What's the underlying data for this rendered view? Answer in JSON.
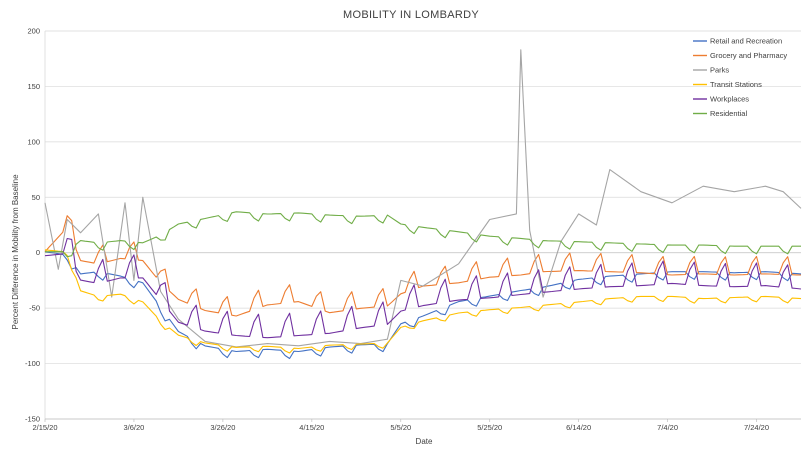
{
  "chart_data": {
    "type": "line",
    "title": "MOBILITY IN LOMBARDY",
    "xlabel": "Date",
    "ylabel": "Percent Difference in Mobility from Baseline",
    "ylim": [
      -150,
      200
    ],
    "yticks": [
      -150,
      -100,
      -50,
      0,
      50,
      100,
      150,
      200
    ],
    "x_start": "2020-02-15",
    "x_end": "2020-08-03",
    "xtick_labels": [
      "2/15/20",
      "3/6/20",
      "3/26/20",
      "4/15/20",
      "5/5/20",
      "5/25/20",
      "6/14/20",
      "7/4/20",
      "7/24/20"
    ],
    "xtick_dates": [
      "2020-02-15",
      "2020-03-06",
      "2020-03-26",
      "2020-04-15",
      "2020-05-05",
      "2020-05-25",
      "2020-06-14",
      "2020-07-04",
      "2020-07-24"
    ],
    "grid": "horizontal",
    "legend_position": "top-right",
    "series": [
      {
        "name": "Retail and Recreation",
        "color": "#4472c4",
        "x": [
          "2020-02-15",
          "2020-02-20",
          "2020-02-23",
          "2020-02-27",
          "2020-03-03",
          "2020-03-08",
          "2020-03-12",
          "2020-03-16",
          "2020-03-22",
          "2020-03-29",
          "2020-04-05",
          "2020-04-12",
          "2020-04-19",
          "2020-04-26",
          "2020-05-02",
          "2020-05-05",
          "2020-05-10",
          "2020-05-18",
          "2020-05-25",
          "2020-06-01",
          "2020-06-06",
          "2020-06-14",
          "2020-06-21",
          "2020-06-28",
          "2020-07-05",
          "2020-07-12",
          "2020-07-19",
          "2020-07-26",
          "2020-08-03"
        ],
        "y": [
          0,
          -3,
          -20,
          -18,
          -22,
          -28,
          -50,
          -72,
          -85,
          -90,
          -88,
          -90,
          -86,
          -84,
          -83,
          -65,
          -58,
          -45,
          -40,
          -35,
          -32,
          -25,
          -22,
          -20,
          -18,
          -18,
          -19,
          -18,
          -20
        ]
      },
      {
        "name": "Grocery and Pharmacy",
        "color": "#ed7d31",
        "x": [
          "2020-02-15",
          "2020-02-20",
          "2020-02-23",
          "2020-02-27",
          "2020-03-03",
          "2020-03-08",
          "2020-03-12",
          "2020-03-16",
          "2020-03-22",
          "2020-03-29",
          "2020-04-05",
          "2020-04-12",
          "2020-04-19",
          "2020-04-26",
          "2020-05-02",
          "2020-05-05",
          "2020-05-10",
          "2020-05-18",
          "2020-05-25",
          "2020-06-01",
          "2020-06-06",
          "2020-06-14",
          "2020-06-21",
          "2020-06-28",
          "2020-07-05",
          "2020-07-12",
          "2020-07-19",
          "2020-07-26",
          "2020-08-03"
        ],
        "y": [
          3,
          25,
          -5,
          -8,
          -3,
          -5,
          -25,
          -40,
          -50,
          -55,
          -45,
          -42,
          -52,
          -48,
          -46,
          -35,
          -28,
          -25,
          -20,
          -18,
          -15,
          -14,
          -15,
          -16,
          -18,
          -17,
          -18,
          -17,
          -18
        ]
      },
      {
        "name": "Parks",
        "color": "#a5a5a5",
        "x": [
          "2020-02-15",
          "2020-02-18",
          "2020-02-20",
          "2020-02-23",
          "2020-02-27",
          "2020-03-01",
          "2020-03-04",
          "2020-03-06",
          "2020-03-08",
          "2020-03-12",
          "2020-03-16",
          "2020-03-22",
          "2020-03-29",
          "2020-04-05",
          "2020-04-12",
          "2020-04-19",
          "2020-04-26",
          "2020-05-02",
          "2020-05-05",
          "2020-05-10",
          "2020-05-18",
          "2020-05-25",
          "2020-05-31",
          "2020-06-01",
          "2020-06-03",
          "2020-06-06",
          "2020-06-10",
          "2020-06-14",
          "2020-06-18",
          "2020-06-21",
          "2020-06-28",
          "2020-07-05",
          "2020-07-12",
          "2020-07-19",
          "2020-07-26",
          "2020-07-30",
          "2020-08-03"
        ],
        "y": [
          45,
          -15,
          30,
          18,
          35,
          -40,
          45,
          -25,
          50,
          -35,
          -60,
          -80,
          -85,
          -82,
          -84,
          -80,
          -82,
          -78,
          -25,
          -30,
          -10,
          30,
          35,
          183,
          20,
          -40,
          10,
          35,
          25,
          75,
          55,
          45,
          60,
          55,
          60,
          55,
          40
        ]
      },
      {
        "name": "Transit Stations",
        "color": "#ffc000",
        "x": [
          "2020-02-15",
          "2020-02-20",
          "2020-02-23",
          "2020-02-27",
          "2020-03-03",
          "2020-03-08",
          "2020-03-12",
          "2020-03-16",
          "2020-03-22",
          "2020-03-29",
          "2020-04-05",
          "2020-04-12",
          "2020-04-19",
          "2020-04-26",
          "2020-05-02",
          "2020-05-05",
          "2020-05-10",
          "2020-05-18",
          "2020-05-25",
          "2020-06-01",
          "2020-06-06",
          "2020-06-14",
          "2020-06-21",
          "2020-06-28",
          "2020-07-05",
          "2020-07-12",
          "2020-07-19",
          "2020-07-26",
          "2020-08-03"
        ],
        "y": [
          2,
          0,
          -35,
          -40,
          -38,
          -45,
          -62,
          -75,
          -82,
          -86,
          -85,
          -87,
          -84,
          -83,
          -82,
          -68,
          -62,
          -55,
          -52,
          -50,
          -48,
          -45,
          -42,
          -40,
          -40,
          -42,
          -41,
          -40,
          -42
        ]
      },
      {
        "name": "Workplaces",
        "color": "#7030a0",
        "x": [
          "2020-02-15",
          "2020-02-20",
          "2020-02-23",
          "2020-02-27",
          "2020-03-03",
          "2020-03-08",
          "2020-03-12",
          "2020-03-16",
          "2020-03-22",
          "2020-03-29",
          "2020-04-05",
          "2020-04-12",
          "2020-04-19",
          "2020-04-26",
          "2020-05-02",
          "2020-05-05",
          "2020-05-10",
          "2020-05-18",
          "2020-05-25",
          "2020-06-01",
          "2020-06-06",
          "2020-06-14",
          "2020-06-21",
          "2020-06-28",
          "2020-07-05",
          "2020-07-12",
          "2020-07-19",
          "2020-07-26",
          "2020-08-03"
        ],
        "y": [
          0,
          2,
          -22,
          -25,
          -20,
          -20,
          -40,
          -60,
          -68,
          -72,
          -74,
          -72,
          -70,
          -65,
          -62,
          -50,
          -45,
          -40,
          -38,
          -35,
          -33,
          -30,
          -28,
          -27,
          -25,
          -27,
          -28,
          -27,
          -30
        ]
      },
      {
        "name": "Residential",
        "color": "#70ad47",
        "x": [
          "2020-02-15",
          "2020-02-20",
          "2020-02-23",
          "2020-02-27",
          "2020-03-03",
          "2020-03-08",
          "2020-03-12",
          "2020-03-16",
          "2020-03-22",
          "2020-03-29",
          "2020-04-05",
          "2020-04-12",
          "2020-04-19",
          "2020-04-26",
          "2020-05-02",
          "2020-05-05",
          "2020-05-10",
          "2020-05-18",
          "2020-05-25",
          "2020-06-01",
          "2020-06-06",
          "2020-06-14",
          "2020-06-21",
          "2020-06-28",
          "2020-07-05",
          "2020-07-12",
          "2020-07-19",
          "2020-07-26",
          "2020-08-03"
        ],
        "y": [
          0,
          0,
          10,
          8,
          10,
          8,
          15,
          25,
          30,
          36,
          34,
          35,
          33,
          32,
          33,
          25,
          22,
          18,
          14,
          12,
          10,
          9,
          8,
          7,
          6,
          6,
          5,
          5,
          5
        ]
      }
    ]
  }
}
